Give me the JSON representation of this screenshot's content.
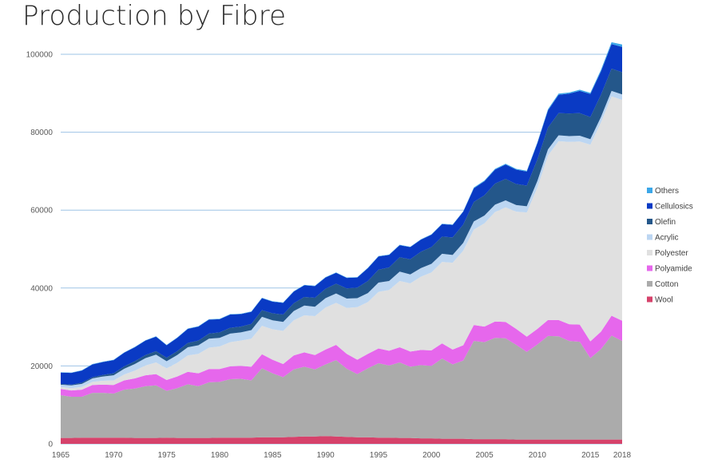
{
  "chart_data": {
    "type": "area",
    "stacked": true,
    "title": "Production by Fibre",
    "xlabel": "",
    "ylabel": "",
    "xlim": [
      1965,
      2018
    ],
    "ylim": [
      0,
      100000
    ],
    "grid": true,
    "legend_position": "right",
    "y_ticks": [
      "0",
      "20000",
      "40000",
      "60000",
      "80000",
      "100000"
    ],
    "x_ticks": [
      "1965",
      "1970",
      "1975",
      "1980",
      "1985",
      "1990",
      "1995",
      "2000",
      "2005",
      "2010",
      "2015",
      "2018"
    ],
    "x": [
      1965,
      1966,
      1967,
      1968,
      1969,
      1970,
      1971,
      1972,
      1973,
      1974,
      1975,
      1976,
      1977,
      1978,
      1979,
      1980,
      1981,
      1982,
      1983,
      1984,
      1985,
      1986,
      1987,
      1988,
      1989,
      1990,
      1991,
      1992,
      1993,
      1994,
      1995,
      1996,
      1997,
      1998,
      1999,
      2000,
      2001,
      2002,
      2003,
      2004,
      2005,
      2006,
      2007,
      2008,
      2009,
      2010,
      2011,
      2012,
      2013,
      2014,
      2015,
      2016,
      2017,
      2018
    ],
    "series": [
      {
        "name": "Wool",
        "color": "#d6426b",
        "values": [
          1500,
          1500,
          1600,
          1600,
          1600,
          1600,
          1600,
          1500,
          1500,
          1500,
          1600,
          1500,
          1500,
          1500,
          1500,
          1600,
          1600,
          1600,
          1600,
          1700,
          1700,
          1700,
          1800,
          1900,
          1900,
          2000,
          1900,
          1800,
          1700,
          1700,
          1600,
          1600,
          1500,
          1500,
          1400,
          1400,
          1300,
          1300,
          1300,
          1200,
          1200,
          1200,
          1200,
          1100,
          1100,
          1100,
          1100,
          1100,
          1100,
          1100,
          1100,
          1100,
          1100,
          1100
        ]
      },
      {
        "name": "Cotton",
        "color": "#ababab",
        "values": [
          11000,
          10600,
          10500,
          11500,
          11500,
          11300,
          12300,
          12700,
          13300,
          13500,
          12000,
          12800,
          13800,
          13300,
          14300,
          14300,
          15000,
          15100,
          14700,
          17700,
          16400,
          15400,
          17300,
          17900,
          17200,
          18400,
          19600,
          17500,
          16200,
          17700,
          19100,
          18500,
          19400,
          18300,
          18800,
          18600,
          20600,
          19100,
          20100,
          25200,
          24900,
          26000,
          25900,
          24300,
          22500,
          24400,
          26600,
          26500,
          25300,
          25100,
          20900,
          23200,
          26700,
          25300
        ]
      },
      {
        "name": "Polyamide",
        "color": "#e667ec",
        "values": [
          1600,
          1600,
          1800,
          2000,
          2100,
          2200,
          2400,
          2600,
          2800,
          2900,
          2800,
          3000,
          3200,
          3300,
          3400,
          3300,
          3300,
          3300,
          3500,
          3600,
          3500,
          3400,
          3600,
          3700,
          3700,
          3800,
          3900,
          3800,
          3700,
          3700,
          3800,
          3800,
          3900,
          3900,
          3900,
          4000,
          3900,
          3800,
          3900,
          4100,
          4000,
          4200,
          4200,
          4100,
          3900,
          4000,
          4100,
          4200,
          4300,
          4400,
          4300,
          4500,
          5100,
          5200
        ]
      },
      {
        "name": "Polyester",
        "color": "#e0e0e0",
        "values": [
          500,
          600,
          700,
          800,
          1000,
          1200,
          1500,
          2000,
          2500,
          3000,
          3000,
          3500,
          4200,
          5000,
          5500,
          5800,
          6200,
          6500,
          7200,
          7300,
          7800,
          8500,
          9000,
          9500,
          10000,
          10800,
          10800,
          11800,
          13500,
          13300,
          14500,
          15600,
          17000,
          17500,
          18800,
          20000,
          20900,
          22300,
          24300,
          24500,
          26500,
          28100,
          29400,
          30100,
          31900,
          36300,
          42200,
          45900,
          46800,
          47000,
          50500,
          53700,
          56300,
          56700
        ]
      },
      {
        "name": "Acrylic",
        "color": "#bcd6f2",
        "values": [
          600,
          700,
          800,
          900,
          1100,
          1300,
          1500,
          1700,
          1900,
          2000,
          1800,
          2000,
          2100,
          2200,
          2300,
          2200,
          2200,
          2100,
          2200,
          2300,
          2300,
          2300,
          2400,
          2500,
          2400,
          2400,
          2400,
          2400,
          2300,
          2300,
          2400,
          2300,
          2400,
          2300,
          2200,
          2200,
          2100,
          2000,
          2000,
          2100,
          2000,
          1900,
          1800,
          1700,
          1600,
          1700,
          1600,
          1500,
          1500,
          1500,
          1400,
          1400,
          1400,
          1400
        ]
      },
      {
        "name": "Olefin",
        "color": "#24578a",
        "values": [
          200,
          200,
          300,
          300,
          400,
          500,
          600,
          700,
          800,
          900,
          900,
          1000,
          1100,
          1200,
          1300,
          1400,
          1500,
          1500,
          1600,
          1700,
          1800,
          1900,
          2000,
          2200,
          2300,
          2400,
          2500,
          2600,
          2700,
          3100,
          3300,
          3500,
          3700,
          3900,
          4200,
          4300,
          4400,
          4500,
          4700,
          5000,
          5200,
          5400,
          5500,
          5400,
          5300,
          5500,
          5600,
          5700,
          5800,
          5800,
          5700,
          5700,
          5700,
          5700
        ]
      },
      {
        "name": "Cellulosics",
        "color": "#0a3ac4",
        "values": [
          2900,
          3000,
          3100,
          3300,
          3300,
          3400,
          3500,
          3600,
          3700,
          3700,
          3200,
          3400,
          3600,
          3600,
          3600,
          3400,
          3400,
          3200,
          3100,
          3100,
          3000,
          3000,
          3000,
          3000,
          3000,
          2900,
          2800,
          2700,
          2600,
          3300,
          3400,
          3200,
          3100,
          3100,
          3100,
          3200,
          3200,
          3200,
          3300,
          3500,
          3600,
          3600,
          3700,
          3700,
          3600,
          4200,
          4400,
          4700,
          5100,
          5700,
          5900,
          6000,
          6300,
          6500
        ]
      },
      {
        "name": "Others",
        "color": "#3ba7e8",
        "values": [
          100,
          100,
          100,
          100,
          100,
          100,
          100,
          100,
          100,
          100,
          100,
          100,
          100,
          100,
          100,
          100,
          100,
          100,
          100,
          100,
          100,
          100,
          100,
          100,
          100,
          100,
          100,
          100,
          100,
          100,
          100,
          100,
          100,
          100,
          100,
          100,
          100,
          100,
          100,
          200,
          200,
          200,
          200,
          200,
          200,
          200,
          300,
          300,
          300,
          300,
          300,
          400,
          500,
          600
        ]
      }
    ]
  }
}
